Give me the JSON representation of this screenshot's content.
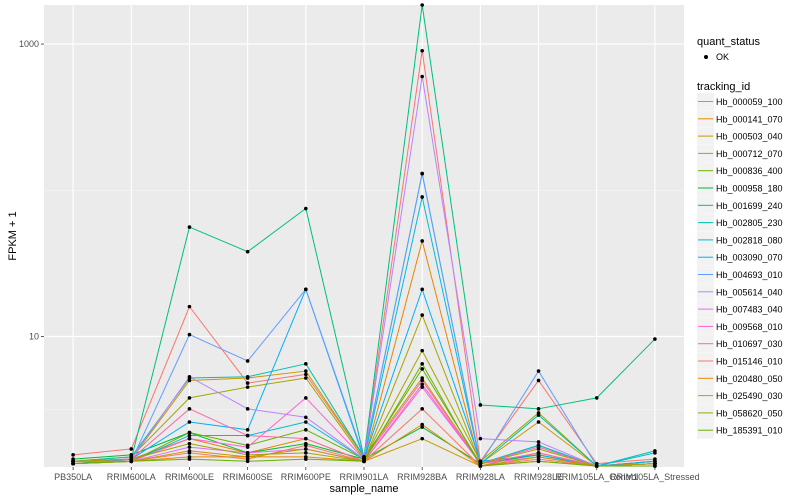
{
  "chart_data": {
    "type": "line",
    "title": "",
    "xlabel": "sample_name",
    "ylabel": "FPKM + 1",
    "y_scale": "log10",
    "ylim": [
      1.28,
      1850
    ],
    "y_ticks": [
      10,
      1000
    ],
    "y_tick_labels": [
      "10",
      "1000"
    ],
    "categories": [
      "PB350LA",
      "RRIM600LA",
      "RRIM600LE",
      "RRIM600SE",
      "RRIM600PE",
      "RRIM901LA",
      "RRIM928BA",
      "RRIM928LA",
      "RRIM928LE",
      "RRIM105LA_Control",
      "RRIM105LA_Stressed"
    ],
    "colors": [
      "#F8766D",
      "#E58700",
      "#C99800",
      "#A3A500",
      "#6BB100",
      "#00BA38",
      "#00BF7D",
      "#00C0AF",
      "#00BCD8",
      "#00B0F6",
      "#619CFF",
      "#B983FF",
      "#E76BF3",
      "#FD61D1",
      "#FF67A4",
      "#F8766D",
      "#E58700",
      "#C99800",
      "#A3A500",
      "#6BB100"
    ],
    "series": [
      {
        "name": "Hb_000059_100",
        "values": [
          1.55,
          1.7,
          16,
          4.8,
          5.5,
          1.5,
          900,
          1.4,
          5,
          1.35,
          1.45
        ]
      },
      {
        "name": "Hb_000141_070",
        "values": [
          1.35,
          1.45,
          2.0,
          1.6,
          2.0,
          1.4,
          45,
          1.3,
          1.6,
          1.3,
          1.35
        ]
      },
      {
        "name": "Hb_000503_040",
        "values": [
          1.4,
          1.45,
          5,
          5.2,
          5.8,
          1.5,
          5.2,
          1.35,
          2.6,
          1.3,
          1.4
        ]
      },
      {
        "name": "Hb_000712_070",
        "values": [
          1.4,
          1.5,
          3.8,
          4.5,
          5.2,
          1.45,
          8,
          1.4,
          3,
          1.3,
          1.35
        ]
      },
      {
        "name": "Hb_000836_400",
        "values": [
          1.4,
          1.4,
          2.2,
          1.8,
          2.3,
          1.45,
          6,
          1.35,
          1.8,
          1.3,
          1.35
        ]
      },
      {
        "name": "Hb_000958_180",
        "values": [
          1.45,
          1.55,
          2.2,
          1.6,
          1.85,
          1.45,
          2.4,
          1.35,
          1.55,
          1.3,
          1.4
        ]
      },
      {
        "name": "Hb_001699_240",
        "values": [
          1.35,
          1.45,
          56,
          38,
          75,
          1.5,
          1850,
          3.4,
          3.2,
          3.8,
          9.6
        ]
      },
      {
        "name": "Hb_002805_230",
        "values": [
          1.4,
          1.5,
          5.2,
          5.3,
          6.5,
          1.5,
          130,
          1.35,
          2.9,
          1.3,
          1.65
        ]
      },
      {
        "name": "Hb_002818_080",
        "values": [
          1.4,
          1.4,
          2.1,
          2.1,
          2.6,
          1.45,
          90,
          1.35,
          1.8,
          1.3,
          1.6
        ]
      },
      {
        "name": "Hb_003090_070",
        "values": [
          1.4,
          1.45,
          2.6,
          2.3,
          21,
          1.45,
          21,
          1.4,
          1.55,
          1.3,
          1.4
        ]
      },
      {
        "name": "Hb_004693_010",
        "values": [
          1.35,
          1.4,
          10.3,
          6.8,
          21,
          1.5,
          130,
          1.35,
          5.8,
          1.3,
          1.35
        ]
      },
      {
        "name": "Hb_005614_040",
        "values": [
          1.4,
          1.45,
          5.3,
          3.2,
          2.8,
          1.45,
          600,
          2.0,
          1.9,
          1.3,
          1.35
        ]
      },
      {
        "name": "Hb_007483_040",
        "values": [
          1.35,
          1.4,
          1.75,
          1.6,
          1.7,
          1.4,
          4.5,
          1.35,
          1.5,
          1.3,
          1.35
        ]
      },
      {
        "name": "Hb_009568_010",
        "values": [
          1.4,
          1.4,
          2.0,
          1.75,
          3.8,
          1.45,
          5,
          1.35,
          1.75,
          1.3,
          1.35
        ]
      },
      {
        "name": "Hb_010697_030",
        "values": [
          1.4,
          1.45,
          3.2,
          2.1,
          2.0,
          1.4,
          4.7,
          1.35,
          1.6,
          1.3,
          1.35
        ]
      },
      {
        "name": "Hb_015146_010",
        "values": [
          1.35,
          1.4,
          1.6,
          1.45,
          1.8,
          1.4,
          3.2,
          1.3,
          1.45,
          1.3,
          1.35
        ]
      },
      {
        "name": "Hb_020480_050",
        "values": [
          1.35,
          1.4,
          1.5,
          1.5,
          1.5,
          1.4,
          2.5,
          1.3,
          1.4,
          1.3,
          1.3
        ]
      },
      {
        "name": "Hb_025490_030",
        "values": [
          1.35,
          1.4,
          1.65,
          1.5,
          1.7,
          1.4,
          2.0,
          1.3,
          1.5,
          1.3,
          1.3
        ]
      },
      {
        "name": "Hb_058620_050",
        "values": [
          1.4,
          1.45,
          1.85,
          1.55,
          1.6,
          1.4,
          14,
          1.35,
          1.7,
          1.3,
          1.35
        ]
      },
      {
        "name": "Hb_185391_010",
        "values": [
          1.35,
          1.4,
          1.45,
          1.4,
          1.45,
          1.4,
          6.5,
          1.3,
          1.4,
          1.3,
          1.3
        ]
      }
    ],
    "legend": {
      "quant_title": "quant_status",
      "quant_label": "OK",
      "tracking_title": "tracking_id",
      "placement": "right"
    },
    "grid": true
  }
}
